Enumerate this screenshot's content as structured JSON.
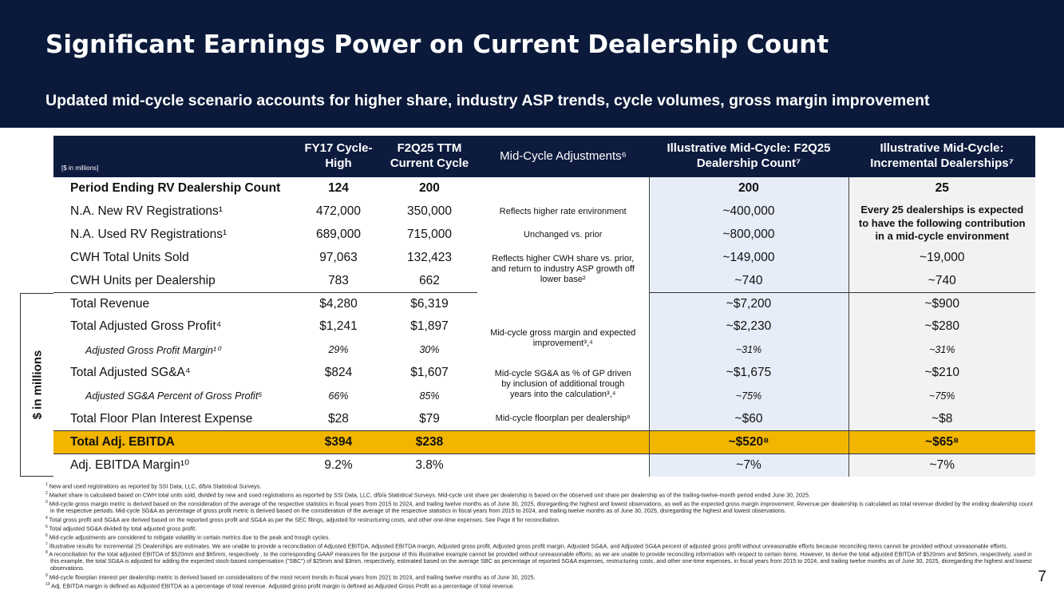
{
  "header": {
    "title": "Significant Earnings Power on Current Dealership Count",
    "subtitle": "Updated mid-cycle scenario accounts for higher share, industry ASP trends, cycle volumes, gross margin improvement"
  },
  "table": {
    "unit_note": "[$ in millions]",
    "side_label": "$ in millions",
    "columns": [
      "FY17 Cycle-High",
      "F2Q25 TTM Current Cycle",
      "Mid-Cycle Adjustments⁶",
      "Illustrative Mid-Cycle: F2Q25 Dealership Count⁷",
      "Illustrative Mid-Cycle: Incremental Dealerships⁷"
    ],
    "rows": [
      {
        "label": "Period Ending RV Dealership Count",
        "fy17": "124",
        "f2q25": "200",
        "mid_cycle": "200",
        "incremental": "25"
      },
      {
        "label": "N.A. New RV Registrations¹",
        "fy17": "472,000",
        "f2q25": "350,000",
        "mid_cycle": "~400,000"
      },
      {
        "label": "N.A. Used RV Registrations¹",
        "fy17": "689,000",
        "f2q25": "715,000",
        "mid_cycle": "~800,000"
      },
      {
        "label": "CWH Total Units Sold",
        "fy17": "97,063",
        "f2q25": "132,423",
        "mid_cycle": "~149,000",
        "incremental": "~19,000"
      },
      {
        "label": "CWH Units per Dealership",
        "fy17": "783",
        "f2q25": "662",
        "mid_cycle": "~740",
        "incremental": "~740"
      },
      {
        "label": "Total Revenue",
        "fy17": "$4,280",
        "f2q25": "$6,319",
        "mid_cycle": "~$7,200",
        "incremental": "~$900"
      },
      {
        "label": "Total Adjusted Gross Profit⁴",
        "fy17": "$1,241",
        "f2q25": "$1,897",
        "mid_cycle": "~$2,230",
        "incremental": "~$280"
      },
      {
        "label": "Adjusted Gross Profit Margin¹⁰",
        "fy17": "29%",
        "f2q25": "30%",
        "mid_cycle": "~31%",
        "incremental": "~31%"
      },
      {
        "label": "Total Adjusted SG&A⁴",
        "fy17": "$824",
        "f2q25": "$1,607",
        "mid_cycle": "~$1,675",
        "incremental": "~$210"
      },
      {
        "label": "Adjusted SG&A Percent of Gross Profit⁵",
        "fy17": "66%",
        "f2q25": "85%",
        "mid_cycle": "~75%",
        "incremental": "~75%"
      },
      {
        "label": "Total Floor Plan Interest Expense",
        "fy17": "$28",
        "f2q25": "$79",
        "mid_cycle": "~$60",
        "incremental": "~$8"
      },
      {
        "label": "Total Adj. EBITDA",
        "fy17": "$394",
        "f2q25": "$238",
        "mid_cycle": "~$520⁸",
        "incremental": "~$65⁸"
      },
      {
        "label": "Adj. EBITDA Margin¹⁰",
        "fy17": "9.2%",
        "f2q25": "3.8%",
        "mid_cycle": "~7%",
        "incremental": "~7%"
      }
    ],
    "adjustments": [
      "Reflects higher rate environment",
      "Unchanged vs. prior",
      "Reflects higher CWH share vs. prior, and return to industry ASP growth off lower base²",
      "Mid-cycle gross margin and expected improvement³,⁴",
      "Mid-cycle SG&A as % of GP driven by inclusion of additional trough years into the calculation³,⁴",
      "Mid-cycle floorplan per dealership⁹"
    ],
    "incremental_note": "Every 25 dealerships is expected to have the following contribution in a mid-cycle environment"
  },
  "footnotes": [
    {
      "mark": "1",
      "text": "New and used registrations as reported by SSI Data, LLC, d/b/a Statistical Surveys."
    },
    {
      "mark": "2",
      "text": "Market share is calculated based on CWH total units sold, divided by new and used registrations as reported by SSI Data, LLC, d/b/a Statistical Surveys. Mid-cycle unit share per dealership is based on the observed unit share per dealership as of the trailing-twelve-month period ended June 30, 2025."
    },
    {
      "mark": "3",
      "text": "Mid-cycle gross margin metric is derived based on the consideration of the average of the respective statistics in fiscal years from 2015 to 2024, and trailing twelve months as of June 30, 2025, disregarding the highest and lowest observations, as well as the expected gross margin improvement. Revenue per dealership is calculated as total revenue divided by the ending dealership count in the respective periods. Mid-cycle SG&A as percentage of gross profit metric is derived based on the consideration of the average of the respective statistics in fiscal years from 2015 to 2024, and trailing twelve months as of June 30, 2025, disregarding the highest and lowest observations."
    },
    {
      "mark": "4",
      "text": "Total gross profit and SG&A are derived based on the reported gross profit and SG&A as per the SEC filings, adjusted for restructuring costs, and other one-time expenses. See Page 8 for reconciliation."
    },
    {
      "mark": "5",
      "text": "Total adjusted SG&A divided by total adjusted gross profit."
    },
    {
      "mark": "6",
      "text": "Mid-cycle adjustments are considered to mitigate volatility in certain metrics due to the peak and trough cycles."
    },
    {
      "mark": "7",
      "text": "Illustrative results for incremental 25 Dealerships are estimates. We are unable to provide a reconciliation of Adjusted EBITDA, Adjusted EBITDA margin, Adjusted gross profit, Adjusted gross profit margin, Adjusted SG&A, and Adjusted SG&A percent of adjusted gross profit without unreasonable efforts because reconciling items cannot be provided without unreasonable efforts."
    },
    {
      "mark": "8",
      "text": "A reconciliation for the total adjusted EBITDA of $520mm and $65mm, respectively , to the corresponding GAAP measures for the purpose of this illustrative example cannot be provided without unreasonable efforts; as we are unable to provide reconciling information with respect to certain items.  However, to derive the total adjusted EBITDA of $520mm and $65mm, respectively, used in this example, the total SG&A is adjusted for adding the expected stock-based compensation (\"SBC\") of $25mm and $3mm, respectively, estimated based on the average SBC as percentage of reported SG&A expenses, restructuring costs, and other one-time expenses, in fiscal years from 2015 to 2024, and trailing twelve months as of June 30, 2025, disregarding the highest and lowest observations."
    },
    {
      "mark": "9",
      "text": "Mid-cycle floorplan interest per dealership metric is derived based on considerations of the most recent trends in fiscal years from 2021 to 2024, and trailing twelve months as of June 30, 2025."
    },
    {
      "mark": "10",
      "text": "Adj. EBITDA margin is defined as Adjusted EBITDA as a percentage of total revenue. Adjusted gross profit margin is defined as Adjusted Gross Profit as a percentage of total revenue."
    }
  ],
  "page_number": "7"
}
